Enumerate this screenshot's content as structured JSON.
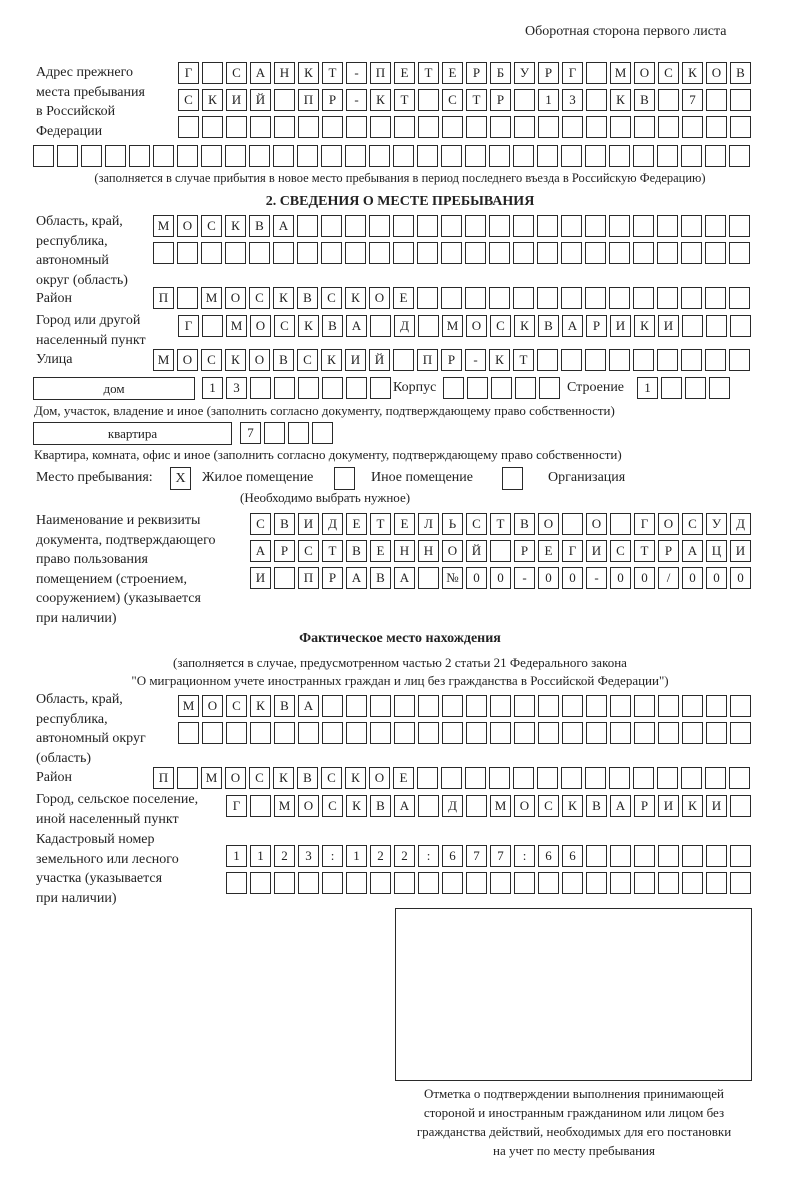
{
  "header": {
    "side_title": "Оборотная сторона первого листа"
  },
  "prev_address": {
    "label": "Адрес прежнего\nместа пребывания\nв Российской\nФедерации",
    "rows": [
      [
        "Г",
        "",
        "С",
        "А",
        "Н",
        "К",
        "Т",
        "-",
        "П",
        "Е",
        "Т",
        "Е",
        "Р",
        "Б",
        "У",
        "Р",
        "Г",
        "",
        "М",
        "О",
        "С",
        "К",
        "О",
        "В"
      ],
      [
        "С",
        "К",
        "И",
        "Й",
        "",
        "П",
        "Р",
        "-",
        "К",
        "Т",
        "",
        "С",
        "Т",
        "Р",
        "",
        "1",
        "3",
        "",
        "К",
        "В",
        "",
        "7",
        "",
        ""
      ],
      [
        "",
        "",
        "",
        "",
        "",
        "",
        "",
        "",
        "",
        "",
        "",
        "",
        "",
        "",
        "",
        "",
        "",
        "",
        "",
        "",
        "",
        "",
        "",
        ""
      ],
      [
        "",
        "",
        "",
        "",
        "",
        "",
        "",
        "",
        "",
        "",
        "",
        "",
        "",
        "",
        "",
        "",
        "",
        "",
        "",
        "",
        "",
        "",
        "",
        "",
        "",
        "",
        "",
        "",
        "",
        ""
      ]
    ],
    "note": "(заполняется в случае прибытия в новое место пребывания в период последнего въезда в Российскую Федерацию)"
  },
  "section2": {
    "title": "2. СВЕДЕНИЯ О МЕСТЕ ПРЕБЫВАНИЯ",
    "region_label": "Область, край,\nреспублика,\nавтономный\nокруг (область)",
    "region_rows": [
      [
        "М",
        "О",
        "С",
        "К",
        "В",
        "А",
        "",
        "",
        "",
        "",
        "",
        "",
        "",
        "",
        "",
        "",
        "",
        "",
        "",
        "",
        "",
        "",
        "",
        "",
        ""
      ],
      [
        "",
        "",
        "",
        "",
        "",
        "",
        "",
        "",
        "",
        "",
        "",
        "",
        "",
        "",
        "",
        "",
        "",
        "",
        "",
        "",
        "",
        "",
        "",
        "",
        ""
      ]
    ],
    "district_label": "Район",
    "district_row": [
      "П",
      "",
      "М",
      "О",
      "С",
      "К",
      "В",
      "С",
      "К",
      "О",
      "Е",
      "",
      "",
      "",
      "",
      "",
      "",
      "",
      "",
      "",
      "",
      "",
      "",
      "",
      ""
    ],
    "city_label": "Город или другой\nнаселенный пункт",
    "city_row": [
      "Г",
      "",
      "М",
      "О",
      "С",
      "К",
      "В",
      "А",
      "",
      "Д",
      "",
      "М",
      "О",
      "С",
      "К",
      "В",
      "А",
      "Р",
      "И",
      "К",
      "И",
      "",
      "",
      ""
    ],
    "street_label": "Улица",
    "street_row": [
      "М",
      "О",
      "С",
      "К",
      "О",
      "В",
      "С",
      "К",
      "И",
      "Й",
      "",
      "П",
      "Р",
      "-",
      "К",
      "Т",
      "",
      "",
      "",
      "",
      "",
      "",
      "",
      "",
      ""
    ],
    "house_type": "дом",
    "house_cells": [
      "1",
      "3",
      "",
      "",
      "",
      "",
      "",
      ""
    ],
    "korpus_label": "Корпус",
    "korpus_cells": [
      "",
      "",
      "",
      "",
      ""
    ],
    "building_label": "Строение",
    "building_cells": [
      "1",
      "",
      "",
      ""
    ],
    "house_note": "Дом, участок, владение и иное (заполнить согласно документу, подтверждающему право собственности)",
    "apt_type": "квартира",
    "apt_cells": [
      "7",
      "",
      "",
      ""
    ],
    "apt_note": "Квартира, комната, офис и иное (заполнить согласно документу, подтверждающему право собственности)",
    "place_label": "Место пребывания:",
    "place_options": [
      {
        "mark": "X",
        "label": "Жилое помещение"
      },
      {
        "mark": "",
        "label": "Иное помещение"
      },
      {
        "mark": "",
        "label": "Организация"
      }
    ],
    "place_note": "(Необходимо выбрать нужное)",
    "doc_label": "Наименование и реквизиты\nдокумента, подтверждающего\nправо пользования\nпомещением (строением,\nсооружением) (указывается\nпри наличии)",
    "doc_rows": [
      [
        "С",
        "В",
        "И",
        "Д",
        "Е",
        "Т",
        "Е",
        "Л",
        "Ь",
        "С",
        "Т",
        "В",
        "О",
        "",
        "О",
        "",
        "Г",
        "О",
        "С",
        "У",
        "Д"
      ],
      [
        "А",
        "Р",
        "С",
        "Т",
        "В",
        "Е",
        "Н",
        "Н",
        "О",
        "Й",
        "",
        "Р",
        "Е",
        "Г",
        "И",
        "С",
        "Т",
        "Р",
        "А",
        "Ц",
        "И"
      ],
      [
        "И",
        "",
        "П",
        "Р",
        "А",
        "В",
        "А",
        "",
        "№",
        "0",
        "0",
        "-",
        "0",
        "0",
        "-",
        "0",
        "0",
        "/",
        "0",
        "0",
        "0"
      ]
    ]
  },
  "actual": {
    "title": "Фактическое место нахождения",
    "note1": "(заполняется в случае, предусмотренном частью 2 статьи 21 Федерального закона",
    "note2": "\"О миграционном учете иностранных граждан и лиц без гражданства в Российской Федерации\")",
    "region_label": "Область, край,\nреспублика,\nавтономный округ\n(область)",
    "region_rows": [
      [
        "М",
        "О",
        "С",
        "К",
        "В",
        "А",
        "",
        "",
        "",
        "",
        "",
        "",
        "",
        "",
        "",
        "",
        "",
        "",
        "",
        "",
        "",
        "",
        "",
        ""
      ],
      [
        "",
        "",
        "",
        "",
        "",
        "",
        "",
        "",
        "",
        "",
        "",
        "",
        "",
        "",
        "",
        "",
        "",
        "",
        "",
        "",
        "",
        "",
        "",
        ""
      ]
    ],
    "district_label": "Район",
    "district_row": [
      "П",
      "",
      "М",
      "О",
      "С",
      "К",
      "В",
      "С",
      "К",
      "О",
      "Е",
      "",
      "",
      "",
      "",
      "",
      "",
      "",
      "",
      "",
      "",
      "",
      "",
      "",
      ""
    ],
    "city_label": "Город, сельское поселение,\nиной населенный пункт",
    "city_row": [
      "Г",
      "",
      "М",
      "О",
      "С",
      "К",
      "В",
      "А",
      "",
      "Д",
      "",
      "М",
      "О",
      "С",
      "К",
      "В",
      "А",
      "Р",
      "И",
      "К",
      "И",
      ""
    ],
    "cadastral_label": "Кадастровый номер\nземельного или лесного\nучастка (указывается\nпри наличии)",
    "cadastral_rows": [
      [
        "1",
        "1",
        "2",
        "3",
        ":",
        "1",
        "2",
        "2",
        ":",
        "6",
        "7",
        "7",
        ":",
        "6",
        "6",
        "",
        "",
        "",
        "",
        "",
        "",
        ""
      ],
      [
        "",
        "",
        "",
        "",
        "",
        "",
        "",
        "",
        "",
        "",
        "",
        "",
        "",
        "",
        "",
        "",
        "",
        "",
        "",
        "",
        "",
        ""
      ]
    ]
  },
  "stamp": {
    "caption": "Отметка о подтверждении выполнения принимающей\nстороной и иностранным гражданином или лицом без\nгражданства действий, необходимых для его постановки\nна учет по месту пребывания"
  }
}
